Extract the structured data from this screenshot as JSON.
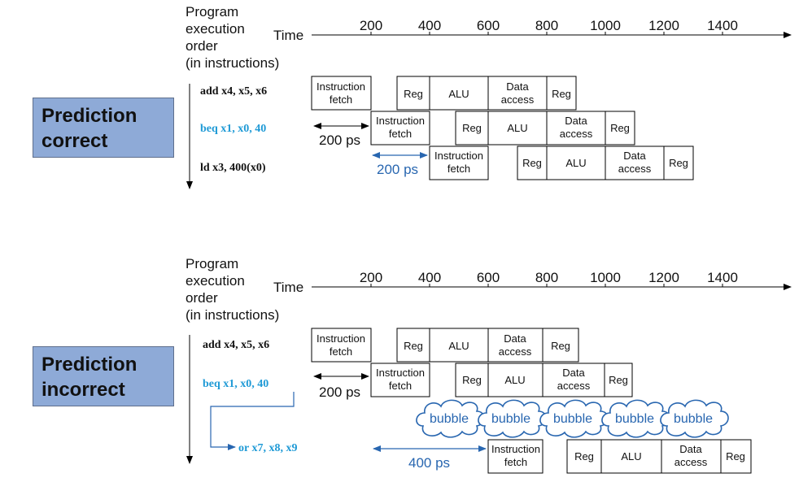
{
  "heading": {
    "line1": "Program",
    "line2": "execution",
    "line3": "order",
    "line4": "(in instructions)",
    "time_label": "Time"
  },
  "time_ticks": [
    "200",
    "400",
    "600",
    "800",
    "1000",
    "1200",
    "1400"
  ],
  "stages": {
    "instruction_fetch_1": "Instruction",
    "instruction_fetch_2": "fetch",
    "reg": "Reg",
    "alu": "ALU",
    "data_access_1": "Data",
    "data_access_2": "access"
  },
  "panels": {
    "correct": {
      "label": "Prediction\ncorrect",
      "instructions": [
        "add x4, x5, x6",
        "beq x1, x0, 40",
        "ld x3, 400(x0)"
      ],
      "delay_black": "200 ps",
      "delay_blue": "200 ps"
    },
    "incorrect": {
      "label": "Prediction\nincorrect",
      "instructions": [
        "add x4, x5, x6",
        "beq x1, x0, 40",
        "or x7, x8, x9"
      ],
      "delay_black": "200 ps",
      "delay_blue": "400 ps",
      "bubble_label": "bubble"
    }
  },
  "colors": {
    "blue_text": "#1f9ad6",
    "blue_arrow": "#2866b0",
    "box_fill": "#8eaad7"
  }
}
